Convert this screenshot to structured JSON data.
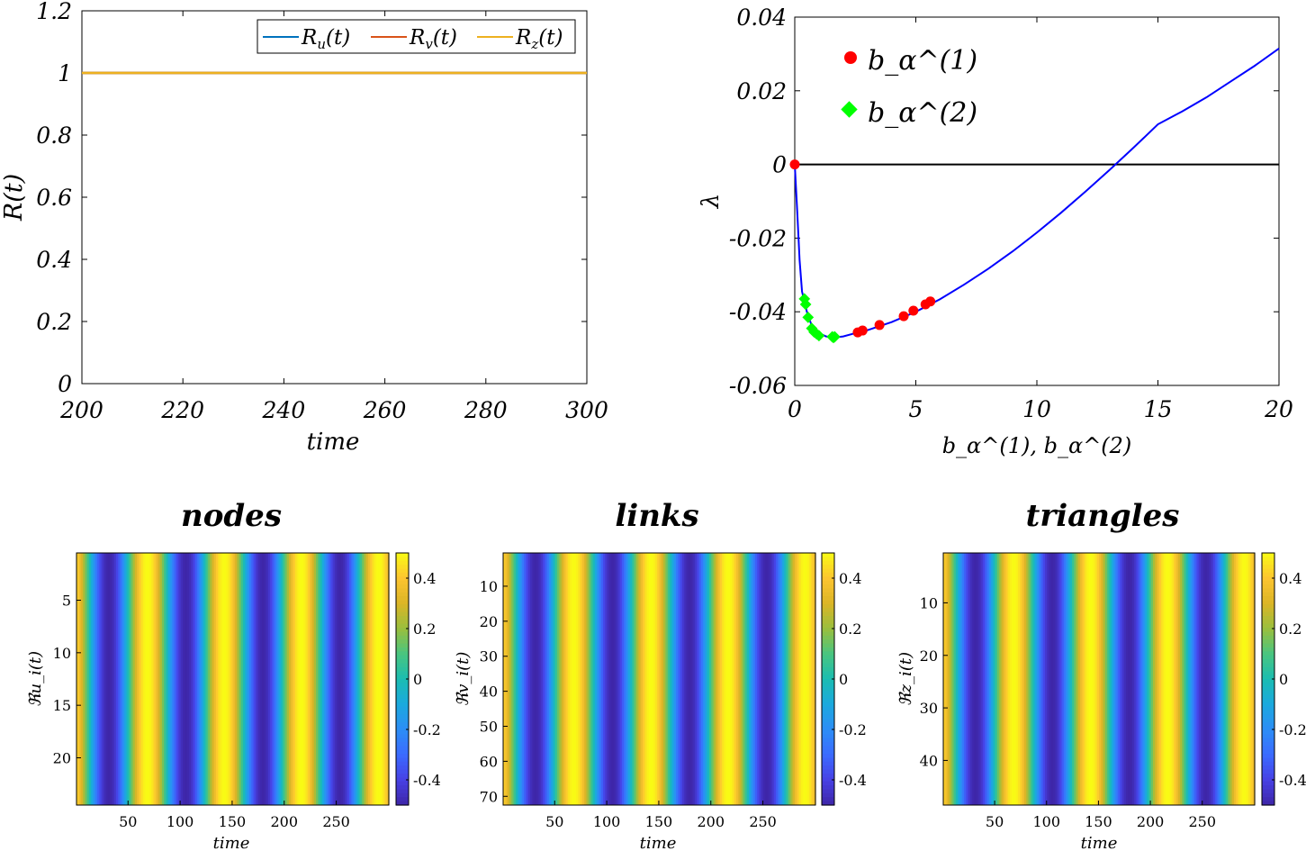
{
  "colors": {
    "Ru": "#0072BD",
    "Rv": "#D95319",
    "Rz": "#EDB120",
    "lambda_curve": "#0000ff",
    "b1_marker": "#ff0000",
    "b2_marker": "#00ff00",
    "zero_line": "#000000",
    "colormap": [
      "#3e26a8",
      "#4741e5",
      "#3b6bff",
      "#2c8ef6",
      "#1ba9de",
      "#1bbdb1",
      "#4ac57f",
      "#9abf3d",
      "#dbb527",
      "#fdc530",
      "#f9fb14"
    ]
  },
  "chart_data": [
    {
      "id": "R-of-t",
      "type": "line",
      "xlabel": "time",
      "ylabel": "R(t)",
      "xlim": [
        200,
        300
      ],
      "ylim": [
        0,
        1.2
      ],
      "xticks": [
        "200",
        "220",
        "240",
        "260",
        "280",
        "300"
      ],
      "yticks": [
        "0",
        "0.2",
        "0.4",
        "0.6",
        "0.8",
        "1",
        "1.2"
      ],
      "legend_position": "top-right",
      "series": [
        {
          "name": "R_u(t)",
          "base": "R",
          "sub": "u",
          "x": [
            200,
            300
          ],
          "values": [
            1,
            1
          ]
        },
        {
          "name": "R_v(t)",
          "base": "R",
          "sub": "v",
          "x": [
            200,
            300
          ],
          "values": [
            1,
            1
          ]
        },
        {
          "name": "R_z(t)",
          "base": "R",
          "sub": "z",
          "x": [
            200,
            300
          ],
          "values": [
            1,
            1
          ]
        }
      ]
    },
    {
      "id": "lambda-spectrum",
      "type": "scatter",
      "xlabel": "b_α^(1), b_α^(2)",
      "ylabel": "λ",
      "xlim": [
        0,
        20
      ],
      "ylim": [
        -0.06,
        0.04
      ],
      "xticks": [
        "0",
        "5",
        "10",
        "15",
        "20"
      ],
      "yticks": [
        "-0.06",
        "-0.04",
        "-0.02",
        "0",
        "0.02",
        "0.04"
      ],
      "legend_position": "top-left",
      "legend": [
        "b_α^(1)",
        "b_α^(2)"
      ],
      "curve": {
        "x": [
          0,
          0.1,
          0.2,
          0.3,
          0.5,
          0.7,
          1.0,
          1.3,
          1.6,
          2.0,
          2.5,
          3.0,
          4.0,
          5.0,
          6.0,
          7.0,
          8.0,
          9.0,
          10.0,
          11.0,
          12.0,
          13.0,
          14.0,
          15.0,
          16.0,
          17.0,
          18.0,
          19.0,
          20.0
        ],
        "y": [
          0,
          -0.0125,
          -0.026,
          -0.0345,
          -0.04,
          -0.0438,
          -0.0458,
          -0.0467,
          -0.047,
          -0.0467,
          -0.0458,
          -0.045,
          -0.0428,
          -0.04,
          -0.0366,
          -0.0326,
          -0.0283,
          -0.0236,
          -0.0185,
          -0.0131,
          -0.0074,
          -0.0015,
          0.0046,
          0.0109,
          0.0144,
          0.0182,
          0.0225,
          0.0268,
          0.0315
        ]
      },
      "zero_line": {
        "x": [
          0,
          20
        ],
        "y": [
          0,
          0
        ]
      },
      "b1_points": {
        "x": [
          0,
          2.6,
          2.8,
          3.5,
          4.5,
          4.9,
          5.4,
          5.6
        ],
        "y": [
          0,
          -0.0456,
          -0.0451,
          -0.0436,
          -0.0412,
          -0.0397,
          -0.038,
          -0.0372
        ]
      },
      "b2_points": {
        "x": [
          0.4,
          0.45,
          0.55,
          0.7,
          0.8,
          0.9,
          1.0,
          1.55,
          1.6,
          1.65
        ],
        "y": [
          -0.0365,
          -0.038,
          -0.0415,
          -0.0445,
          -0.0455,
          -0.046,
          -0.0465,
          -0.0468,
          -0.047,
          -0.0468
        ]
      }
    },
    {
      "id": "heatmap-nodes",
      "type": "heatmap",
      "title": "nodes",
      "ylabel": "ℜu_i(t)",
      "xlabel": "time",
      "n_rows": 24,
      "n_cols": 300,
      "time_max": 300,
      "period": 74,
      "phase": 0.5,
      "amplitude": 0.5,
      "xticks": [
        50,
        100,
        150,
        200,
        250
      ],
      "xtick_labels": [
        "50",
        "100",
        "150",
        "200",
        "250"
      ],
      "yticks": [
        5,
        10,
        15,
        20
      ],
      "ytick_labels": [
        "5",
        "10",
        "15",
        "20"
      ],
      "cbar_ticks": [
        0.4,
        0.2,
        0,
        -0.2,
        -0.4
      ],
      "cbar_tick_labels": [
        "0.4",
        "0.2",
        "0",
        "-0.2",
        "-0.4"
      ],
      "clim": [
        -0.5,
        0.5
      ]
    },
    {
      "id": "heatmap-links",
      "type": "heatmap",
      "title": "links",
      "ylabel": "ℜv_i(t)",
      "xlabel": "time",
      "n_rows": 72,
      "n_cols": 300,
      "time_max": 300,
      "period": 74,
      "phase": 0.5,
      "amplitude": 0.5,
      "xticks": [
        50,
        100,
        150,
        200,
        250
      ],
      "xtick_labels": [
        "50",
        "100",
        "150",
        "200",
        "250"
      ],
      "yticks": [
        10,
        20,
        30,
        40,
        50,
        60,
        70
      ],
      "ytick_labels": [
        "10",
        "20",
        "30",
        "40",
        "50",
        "60",
        "70"
      ],
      "cbar_ticks": [
        0.4,
        0.2,
        0,
        -0.2,
        -0.4
      ],
      "cbar_tick_labels": [
        "0.4",
        "0.2",
        "0",
        "-0.2",
        "-0.4"
      ],
      "clim": [
        -0.5,
        0.5
      ]
    },
    {
      "id": "heatmap-triangles",
      "type": "heatmap",
      "title": "triangles",
      "ylabel": "ℜz_i(t)",
      "xlabel": "time",
      "n_rows": 48,
      "n_cols": 300,
      "time_max": 300,
      "period": 74,
      "phase": 0.5,
      "amplitude": 0.5,
      "xticks": [
        50,
        100,
        150,
        200,
        250
      ],
      "xtick_labels": [
        "50",
        "100",
        "150",
        "200",
        "250"
      ],
      "yticks": [
        10,
        20,
        30,
        40
      ],
      "ytick_labels": [
        "10",
        "20",
        "30",
        "40"
      ],
      "cbar_ticks": [
        0.4,
        0.2,
        0,
        -0.2,
        -0.4
      ],
      "cbar_tick_labels": [
        "0.4",
        "0.2",
        "0",
        "-0.2",
        "-0.4"
      ],
      "clim": [
        -0.5,
        0.5
      ]
    }
  ]
}
